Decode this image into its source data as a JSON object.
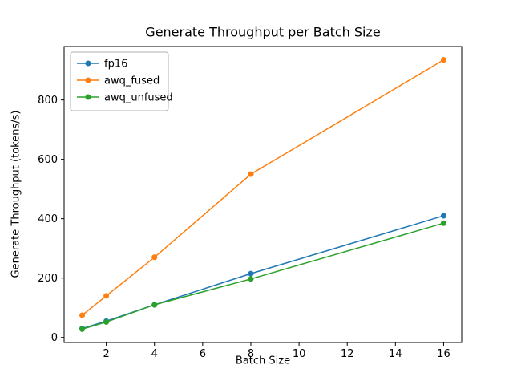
{
  "chart_data": {
    "type": "line",
    "title": "Generate Throughput per Batch Size",
    "xlabel": "Batch Size",
    "ylabel": "Generate Throughput (tokens/s)",
    "x": [
      1,
      2,
      4,
      8,
      16
    ],
    "series": [
      {
        "name": "fp16",
        "color": "#1f77b4",
        "values": [
          30,
          55,
          110,
          215,
          410
        ]
      },
      {
        "name": "awq_fused",
        "color": "#ff7f0e",
        "values": [
          75,
          140,
          270,
          550,
          935
        ]
      },
      {
        "name": "awq_unfused",
        "color": "#2ca02c",
        "values": [
          28,
          52,
          110,
          197,
          385
        ]
      }
    ],
    "xlim": [
      0.25,
      16.75
    ],
    "ylim": [
      -17,
      980
    ],
    "xticks": [
      2,
      4,
      6,
      8,
      10,
      12,
      14,
      16
    ],
    "yticks": [
      0,
      200,
      400,
      600,
      800
    ],
    "grid": false,
    "legend_position": "upper left",
    "marker": "circle"
  }
}
